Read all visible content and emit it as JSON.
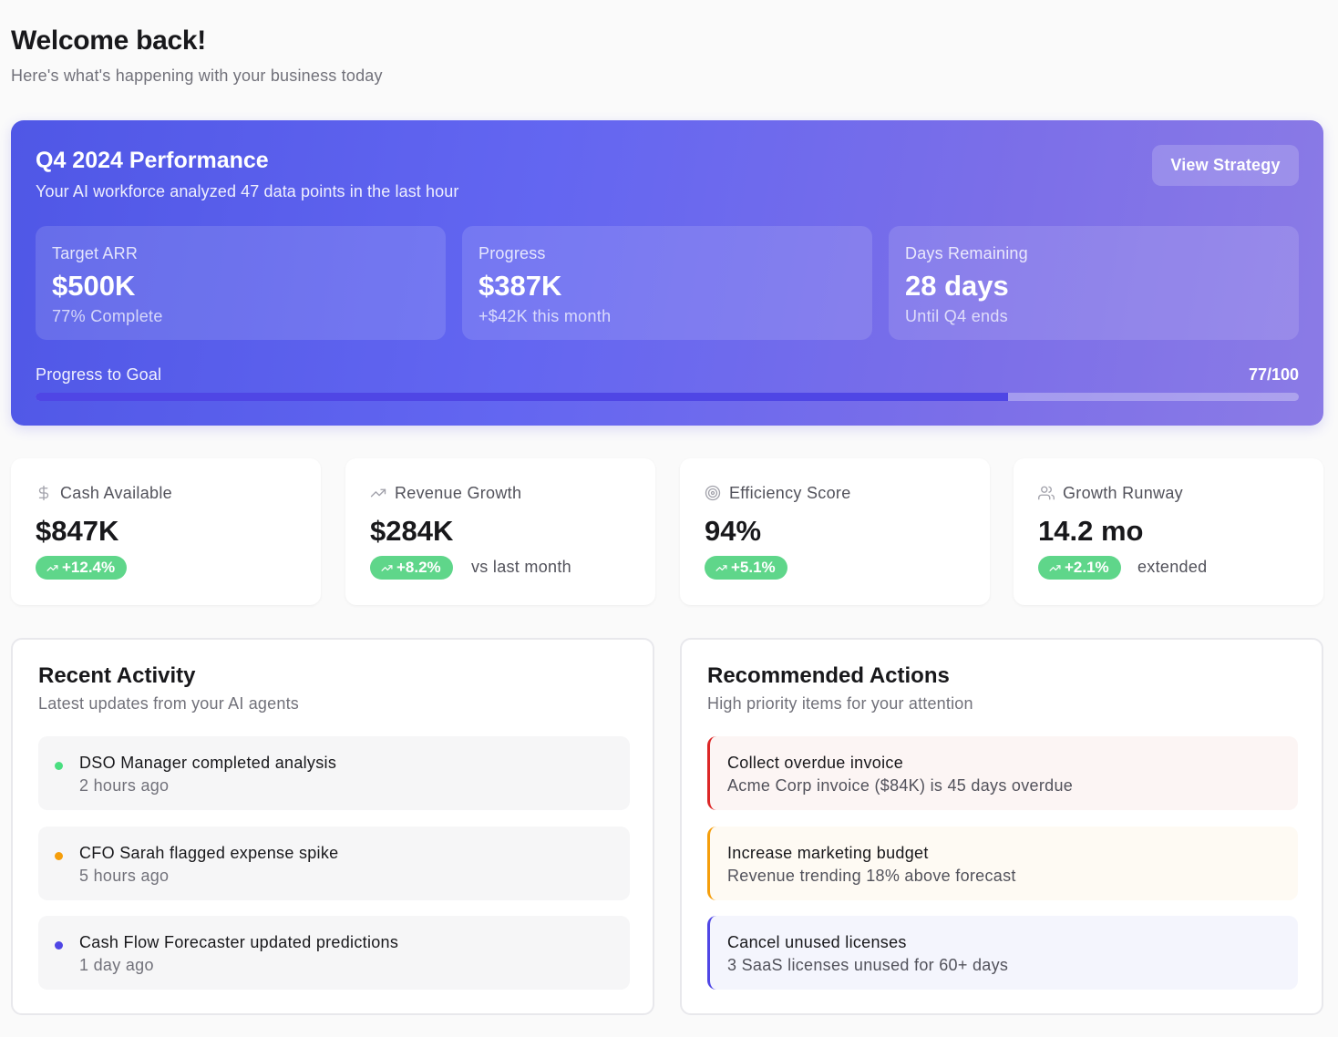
{
  "header": {
    "title": "Welcome back!",
    "subtitle": "Here's what's happening with your business today"
  },
  "hero": {
    "title": "Q4 2024 Performance",
    "subtitle": "Your AI workforce analyzed 47 data points in the last hour",
    "button_label": "View Strategy",
    "stats": [
      {
        "label": "Target ARR",
        "value": "$500K",
        "note": "77% Complete"
      },
      {
        "label": "Progress",
        "value": "$387K",
        "note": "+$42K this month"
      },
      {
        "label": "Days Remaining",
        "value": "28 days",
        "note": "Until Q4 ends"
      }
    ],
    "goal": {
      "label": "Progress to Goal",
      "value_text": "77/100",
      "fraction": 0.77
    }
  },
  "metrics": [
    {
      "icon": "dollar-icon",
      "label": "Cash Available",
      "value": "$847K",
      "change": "+12.4%",
      "extra": ""
    },
    {
      "icon": "trend-up-icon",
      "label": "Revenue Growth",
      "value": "$284K",
      "change": "+8.2%",
      "extra": "vs last month"
    },
    {
      "icon": "target-icon",
      "label": "Efficiency Score",
      "value": "94%",
      "change": "+5.1%",
      "extra": ""
    },
    {
      "icon": "users-icon",
      "label": "Growth Runway",
      "value": "14.2 mo",
      "change": "+2.1%",
      "extra": "extended"
    }
  ],
  "activity": {
    "title": "Recent Activity",
    "subtitle": "Latest updates from your AI agents",
    "items": [
      {
        "title": "DSO Manager completed analysis",
        "time": "2 hours ago",
        "dot_color": "#4ade80"
      },
      {
        "title": "CFO Sarah flagged expense spike",
        "time": "5 hours ago",
        "dot_color": "#f59e0b"
      },
      {
        "title": "Cash Flow Forecaster updated predictions",
        "time": "1 day ago",
        "dot_color": "#4f46e5"
      }
    ]
  },
  "actions": {
    "title": "Recommended Actions",
    "subtitle": "High priority items for your attention",
    "items": [
      {
        "title": "Collect overdue invoice",
        "desc": "Acme Corp invoice ($84K) is 45 days overdue",
        "accent": "#dc2626",
        "bg": "#fcf5f4"
      },
      {
        "title": "Increase marketing budget",
        "desc": "Revenue trending 18% above forecast",
        "accent": "#f59e0b",
        "bg": "#fefaf3"
      },
      {
        "title": "Cancel unused licenses",
        "desc": "3 SaaS licenses unused for 60+ days",
        "accent": "#4f46e5",
        "bg": "#f4f5fd"
      }
    ]
  },
  "colors": {
    "accent": "#4f46e5",
    "success": "#5fd68a",
    "hero_gradient_start": "#4f57e6",
    "hero_gradient_end": "#8b7be6"
  }
}
